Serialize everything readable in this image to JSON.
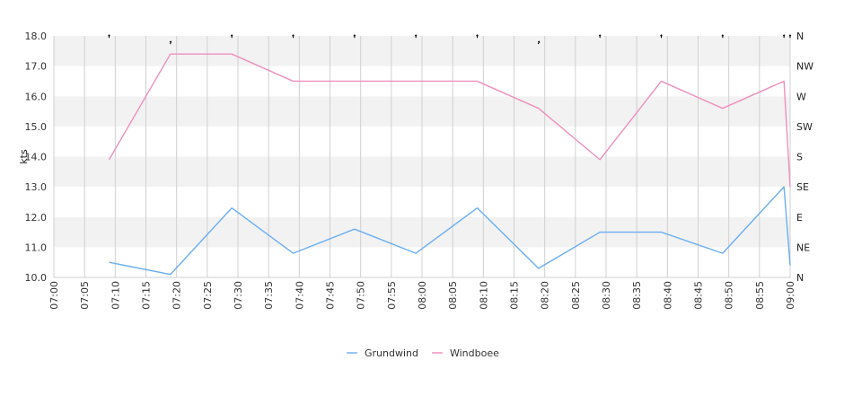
{
  "chart_data": {
    "type": "line",
    "ylabel": "kts",
    "ylim": [
      10,
      18
    ],
    "yticks": [
      "10.0",
      "11.0",
      "12.0",
      "13.0",
      "14.0",
      "15.0",
      "16.0",
      "17.0",
      "18.0"
    ],
    "xticks": [
      "07:00",
      "07:05",
      "07:10",
      "07:15",
      "07:20",
      "07:25",
      "07:30",
      "07:35",
      "07:40",
      "07:45",
      "07:50",
      "07:55",
      "08:00",
      "08:05",
      "08:10",
      "08:15",
      "08:20",
      "08:25",
      "08:30",
      "08:35",
      "08:40",
      "08:45",
      "08:50",
      "08:55",
      "09:00"
    ],
    "xlim_minutes": [
      0,
      120
    ],
    "right_axis": {
      "labels": [
        "N",
        "NE",
        "E",
        "SE",
        "S",
        "SW",
        "W",
        "NW",
        "N"
      ]
    },
    "grid": true,
    "legend_position": "bottom-center",
    "series": [
      {
        "name": "Grundwind",
        "color": "#6aaef0",
        "x": [
          "07:09",
          "07:19",
          "07:29",
          "07:39",
          "07:49",
          "07:59",
          "08:09",
          "08:19",
          "08:29",
          "08:39",
          "08:49",
          "08:59",
          "09:00"
        ],
        "values": [
          10.5,
          10.1,
          12.3,
          10.8,
          11.6,
          10.8,
          12.3,
          10.3,
          11.5,
          11.5,
          10.8,
          13.0,
          10.4
        ]
      },
      {
        "name": "Windboee",
        "color": "#ee8fbf",
        "x": [
          "07:09",
          "07:19",
          "07:29",
          "07:39",
          "07:49",
          "07:59",
          "08:09",
          "08:19",
          "08:29",
          "08:39",
          "08:49",
          "08:59",
          "09:00"
        ],
        "values": [
          13.9,
          17.4,
          17.4,
          16.5,
          16.5,
          16.5,
          16.5,
          15.6,
          13.9,
          16.5,
          15.6,
          16.5,
          13.0
        ]
      }
    ],
    "direction_marks": {
      "x": [
        "07:09",
        "07:19",
        "07:29",
        "07:39",
        "07:49",
        "07:59",
        "08:09",
        "08:19",
        "08:29",
        "08:39",
        "08:49",
        "08:59",
        "09:00"
      ],
      "values": [
        0,
        10,
        0,
        0,
        0,
        0,
        0,
        20,
        0,
        0,
        0,
        0,
        0
      ]
    }
  }
}
